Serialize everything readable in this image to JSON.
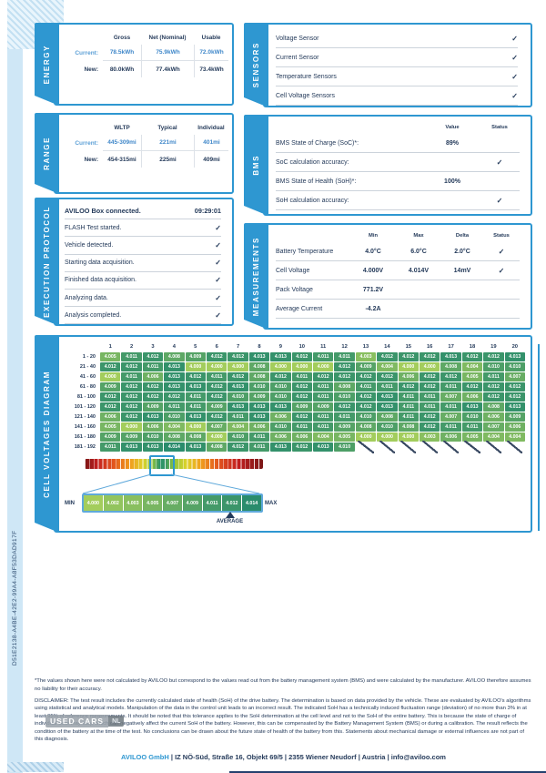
{
  "colors": {
    "accent": "#2e97d1",
    "navy": "#243a5a",
    "bluev": "#3f87c9",
    "lblue": "#5b9fd6",
    "strip": "#cfe7f6",
    "cell_low": "#a3cd5c",
    "cell_high": "#2a8c6c"
  },
  "ui": {
    "check_glyph": "✓"
  },
  "page": {
    "id_code": "D51E2138-A4BE-42E2-99A4-A8F53DAD917F",
    "footnote": "*The values shown here were not calculated by AVILOO but correspond to the values read out from the battery management system (BMS) and were calculated by the manufacturer. AVILOO therefore assumes no liability for their accuracy.",
    "disclaimer": "DISCLAIMER: The test result includes the currently calculated state of health (SoH) of the drive battery. The determination is based on data provided by the vehicle. These are evaluated by AVILOO's algorithms using statistical and analytical models. Manipulation of the data in the control unit leads to an incorrect result. The indicated SoH has a technically induced fluctuation range (deviation) of no more than 3% in at least 95% of reference measurements. It should be noted that this tolerance applies to the SoH determination at the cell level and not to the SoH of the entire battery. This is because the state of charge of individual cells may vary, which can negatively affect the current SoH of the battery. However, this can be compensated by the Battery Management System (BMS) or during a calibration. The result reflects the condition of the battery at the time of the test. No conclusions can be drawn about the future state of health of the battery from this. Statements about mechanical damage or external influences are not part of this diagnosis.",
    "footer": {
      "company": "AVILOO GmbH",
      "rest": " | IZ NÖ-Süd, Straße 16, Objekt 69/5 | 2355 Wiener Neudorf | Austria | info@aviloo.com"
    },
    "watermark": {
      "label": "USED CARS",
      "suffix": "NL"
    }
  },
  "energy": {
    "title": "ENERGY",
    "columns": [
      "Gross",
      "Net (Nominal)",
      "Usable"
    ],
    "rows": [
      {
        "label": "Current:",
        "values": [
          "78.5kWh",
          "75.9kWh",
          "72.0kWh"
        ],
        "highlight": true
      },
      {
        "label": "New:",
        "values": [
          "80.0kWh",
          "77.4kWh",
          "73.4kWh"
        ],
        "highlight": false
      }
    ]
  },
  "range": {
    "title": "RANGE",
    "columns": [
      "WLTP",
      "Typical",
      "Individual"
    ],
    "rows": [
      {
        "label": "Current:",
        "values": [
          "445-309mi",
          "221mi",
          "401mi"
        ],
        "highlight": true
      },
      {
        "label": "New:",
        "values": [
          "454-315mi",
          "225mi",
          "409mi"
        ],
        "highlight": false
      }
    ]
  },
  "protocol": {
    "title": "EXECUTION PROTOCOL",
    "rows": [
      {
        "label": "AVILOO Box connected.",
        "value": "09:29:01",
        "bold": true
      },
      {
        "label": "FLASH Test started.",
        "check": true
      },
      {
        "label": "Vehicle detected.",
        "check": true
      },
      {
        "label": "Starting data acquisition.",
        "check": true
      },
      {
        "label": "Finished data acquisition.",
        "check": true
      },
      {
        "label": "Analyzing data.",
        "check": true
      },
      {
        "label": "Analysis completed.",
        "check": true
      }
    ]
  },
  "sensors": {
    "title": "SENSORS",
    "rows": [
      "Voltage Sensor",
      "Current Sensor",
      "Temperature Sensors",
      "Cell Voltage Sensors"
    ]
  },
  "bms": {
    "title": "BMS",
    "columns": [
      "Value",
      "Status"
    ],
    "rows": [
      {
        "label": "BMS State of Charge (SoC)*:",
        "value": "89%",
        "check": false
      },
      {
        "label": "SoC calculation accuracy:",
        "value": "",
        "check": true
      },
      {
        "label": "BMS State of Health (SoH)*:",
        "value": "100%",
        "check": false
      },
      {
        "label": "SoH calculation accuracy:",
        "value": "",
        "check": true
      }
    ]
  },
  "measurements": {
    "title": "MEASUREMENTS",
    "columns": [
      "Min",
      "Max",
      "Delta",
      "Status"
    ],
    "rows": [
      {
        "label": "Battery Temperature",
        "min": "4.0°C",
        "max": "6.0°C",
        "delta": "2.0°C",
        "check": true
      },
      {
        "label": "Cell Voltage",
        "min": "4.000V",
        "max": "4.014V",
        "delta": "14mV",
        "check": true
      },
      {
        "label": "Pack Voltage",
        "min": "771.2V",
        "max": "",
        "delta": "",
        "check": false
      },
      {
        "label": "Average Current",
        "min": "-4.2A",
        "max": "",
        "delta": "",
        "check": false
      }
    ]
  },
  "cells_panel": {
    "title": "CELL VOLTAGES DIAGRAM",
    "min_label": "MIN",
    "max_label": "MAX",
    "average_label": "AVERAGE"
  },
  "chart_data": {
    "type": "heatmap",
    "title": "CELL VOLTAGES DIAGRAM",
    "columns": [
      1,
      2,
      3,
      4,
      5,
      6,
      7,
      8,
      9,
      10,
      11,
      12,
      13,
      14,
      15,
      16,
      17,
      18,
      19,
      20
    ],
    "row_labels": [
      "1 - 20",
      "21 - 40",
      "41 - 60",
      "61 - 80",
      "81 - 100",
      "101 - 120",
      "121 - 140",
      "141 - 160",
      "161 - 180",
      "181 - 192"
    ],
    "values": [
      [
        "4.005",
        "4.011",
        "4.012",
        "4.008",
        "4.009",
        "4.012",
        "4.012",
        "4.013",
        "4.013",
        "4.012",
        "4.011",
        "4.011",
        "4.003",
        "4.012",
        "4.012",
        "4.012",
        "4.013",
        "4.012",
        "4.012",
        "4.013"
      ],
      [
        "4.012",
        "4.012",
        "4.011",
        "4.013",
        "4.000",
        "4.000",
        "4.000",
        "4.008",
        "4.000",
        "4.000",
        "4.000",
        "4.012",
        "4.009",
        "4.004",
        "4.000",
        "4.000",
        "4.008",
        "4.004",
        "4.010",
        "4.010"
      ],
      [
        "4.000",
        "4.011",
        "4.006",
        "4.013",
        "4.012",
        "4.011",
        "4.012",
        "4.008",
        "4.012",
        "4.011",
        "4.012",
        "4.012",
        "4.012",
        "4.012",
        "4.006",
        "4.012",
        "4.012",
        "4.005",
        "4.011",
        "4.007"
      ],
      [
        "4.009",
        "4.012",
        "4.012",
        "4.013",
        "4.013",
        "4.012",
        "4.013",
        "4.010",
        "4.010",
        "4.012",
        "4.011",
        "4.008",
        "4.011",
        "4.011",
        "4.012",
        "4.012",
        "4.011",
        "4.012",
        "4.012",
        "4.012"
      ],
      [
        "4.012",
        "4.012",
        "4.012",
        "4.012",
        "4.011",
        "4.012",
        "4.010",
        "4.009",
        "4.010",
        "4.012",
        "4.011",
        "4.010",
        "4.012",
        "4.013",
        "4.011",
        "4.011",
        "4.007",
        "4.006",
        "4.012",
        "4.012"
      ],
      [
        "4.012",
        "4.012",
        "4.009",
        "4.011",
        "4.011",
        "4.009",
        "4.013",
        "4.013",
        "4.013",
        "4.009",
        "4.009",
        "4.012",
        "4.012",
        "4.013",
        "4.011",
        "4.011",
        "4.011",
        "4.013",
        "4.008",
        "4.013"
      ],
      [
        "4.006",
        "4.012",
        "4.013",
        "4.010",
        "4.013",
        "4.012",
        "4.011",
        "4.013",
        "4.006",
        "4.012",
        "4.011",
        "4.011",
        "4.010",
        "4.008",
        "4.011",
        "4.012",
        "4.007",
        "4.010",
        "4.006",
        "4.009"
      ],
      [
        "4.005",
        "4.000",
        "4.006",
        "4.004",
        "4.000",
        "4.007",
        "4.004",
        "4.006",
        "4.010",
        "4.011",
        "4.011",
        "4.009",
        "4.008",
        "4.010",
        "4.008",
        "4.012",
        "4.011",
        "4.011",
        "4.007",
        "4.006"
      ],
      [
        "4.009",
        "4.009",
        "4.010",
        "4.008",
        "4.008",
        "4.000",
        "4.010",
        "4.011",
        "4.006",
        "4.006",
        "4.004",
        "4.005",
        "4.000",
        "4.000",
        "4.000",
        "4.003",
        "4.006",
        "4.005",
        "4.004",
        "4.004"
      ],
      [
        "4.011",
        "4.013",
        "4.013",
        "4.014",
        "4.013",
        "4.008",
        "4.012",
        "4.011",
        "4.013",
        "4.012",
        "4.013",
        "4.010",
        null,
        null,
        null,
        null,
        null,
        null,
        null,
        null
      ]
    ],
    "scale_ticks": [
      "4.000",
      "4.002",
      "4.003",
      "4.005",
      "4.007",
      "4.009",
      "4.011",
      "4.012",
      "4.014"
    ],
    "average_index": 7,
    "value_range": [
      4.0,
      4.014
    ]
  }
}
